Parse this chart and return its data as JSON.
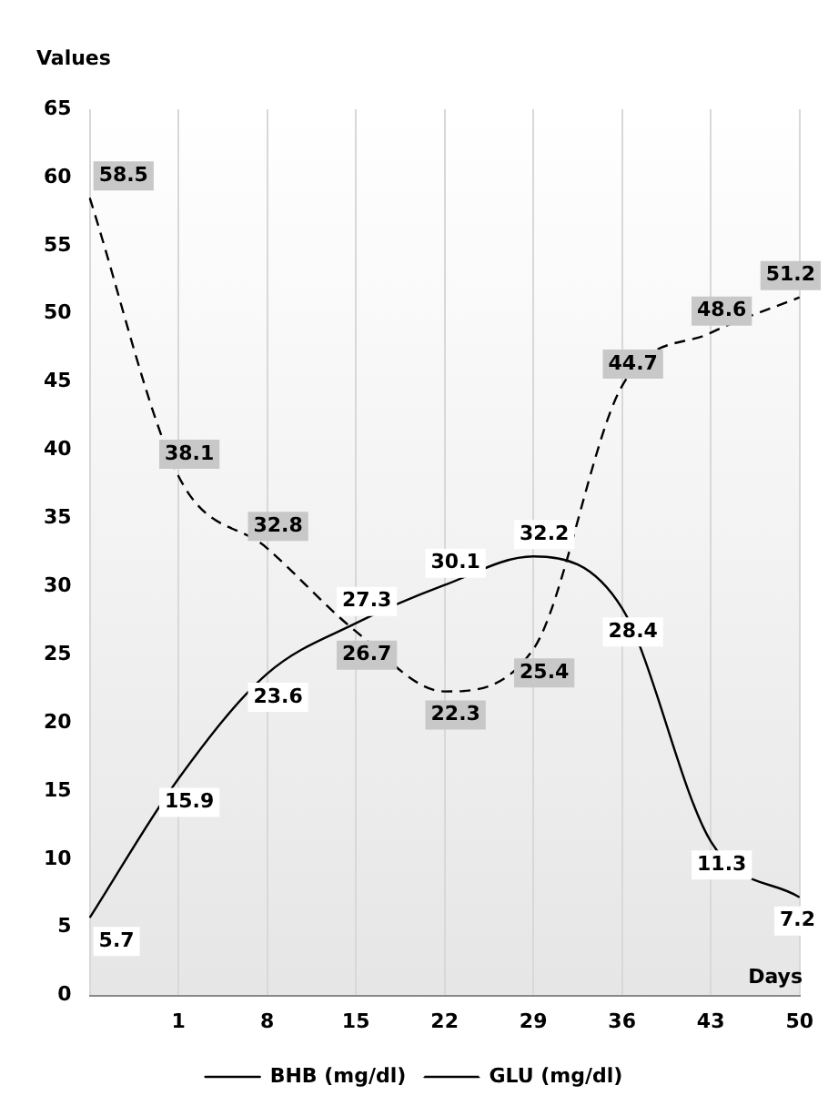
{
  "chart_data": {
    "type": "line",
    "xlabel": "Days",
    "ylabel": "Values",
    "categories": [
      null,
      "1",
      "8",
      "15",
      "22",
      "29",
      "36",
      "43",
      "50"
    ],
    "series": [
      {
        "name": "BHB (mg/dl)",
        "color": "#000000",
        "line_style": "solid",
        "values": [
          5.7,
          15.9,
          23.6,
          27.3,
          30.1,
          32.2,
          28.4,
          11.3,
          7.2
        ]
      },
      {
        "name": "GLU (mg/dl)",
        "color": "#000000",
        "line_style": "dashed",
        "values": [
          58.5,
          38.1,
          32.8,
          26.7,
          22.3,
          25.4,
          44.7,
          48.6,
          51.2
        ]
      }
    ],
    "ylim": [
      0,
      65
    ],
    "yticks": [
      0,
      5,
      10,
      15,
      20,
      25,
      30,
      35,
      40,
      45,
      50,
      55,
      60,
      65
    ],
    "grid": "x",
    "legend": "bottom",
    "marker": "none",
    "data_labels": true
  }
}
